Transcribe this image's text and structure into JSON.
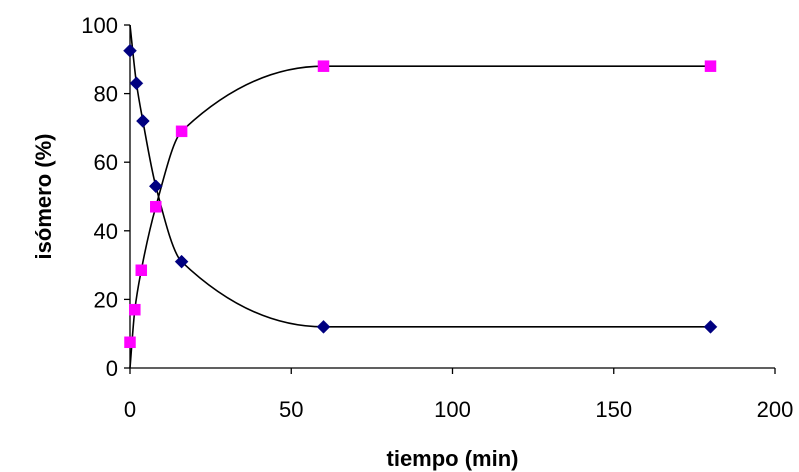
{
  "chart_data": {
    "type": "scatter",
    "title": "",
    "xlabel": "tiempo (min)",
    "ylabel": "isómero (%)",
    "xlim": [
      0,
      200
    ],
    "ylim": [
      0,
      100
    ],
    "xticks": [
      0,
      50,
      100,
      150,
      200
    ],
    "yticks": [
      0,
      20,
      40,
      60,
      80,
      100
    ],
    "xtick_labels": [
      "0",
      "50",
      "100",
      "150",
      "200"
    ],
    "ytick_labels": [
      "0",
      "20",
      "40",
      "60",
      "80",
      "100"
    ],
    "grid": false,
    "legend": "none",
    "series": [
      {
        "marker": "diamond",
        "color": "#000080",
        "x": [
          0,
          2,
          4,
          8,
          16,
          60,
          180
        ],
        "y": [
          92.5,
          83,
          72,
          53,
          31,
          12,
          12
        ],
        "fit_curve": true
      },
      {
        "marker": "square",
        "color": "#ff00ff",
        "x": [
          0,
          1.5,
          3.5,
          8,
          16,
          60,
          180
        ],
        "y": [
          7.5,
          17,
          28.5,
          47,
          69,
          88,
          88
        ],
        "fit_curve": true
      }
    ],
    "curve_color": "#000000"
  }
}
